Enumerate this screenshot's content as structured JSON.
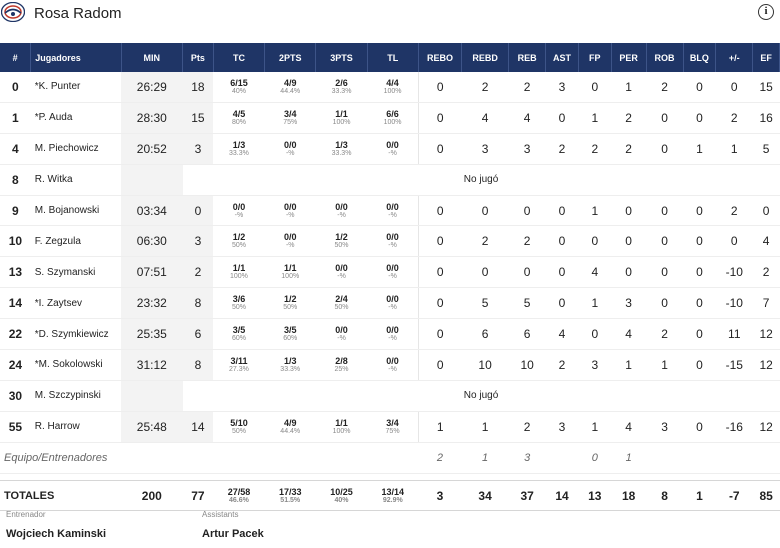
{
  "team": {
    "name": "Rosa Radom"
  },
  "columns": [
    "#",
    "Jugadores",
    "MIN",
    "Pts",
    "TC",
    "2PTS",
    "3PTS",
    "TL",
    "REBO",
    "REBD",
    "REB",
    "AST",
    "FP",
    "PER",
    "ROB",
    "BLQ",
    "+/-",
    "EF"
  ],
  "players": [
    {
      "num": "0",
      "name": "*K. Punter",
      "min": "26:29",
      "pts": "18",
      "tc": "6/15",
      "tc_pct": "40%",
      "p2": "4/9",
      "p2_pct": "44.4%",
      "p3": "2/6",
      "p3_pct": "33.3%",
      "tl": "4/4",
      "tl_pct": "100%",
      "rebo": "0",
      "rebd": "2",
      "reb": "2",
      "ast": "3",
      "fp": "0",
      "per": "1",
      "rob": "2",
      "blq": "0",
      "pm": "0",
      "ef": "15"
    },
    {
      "num": "1",
      "name": "*P. Auda",
      "min": "28:30",
      "pts": "15",
      "tc": "4/5",
      "tc_pct": "80%",
      "p2": "3/4",
      "p2_pct": "75%",
      "p3": "1/1",
      "p3_pct": "100%",
      "tl": "6/6",
      "tl_pct": "100%",
      "rebo": "0",
      "rebd": "4",
      "reb": "4",
      "ast": "0",
      "fp": "1",
      "per": "2",
      "rob": "0",
      "blq": "0",
      "pm": "2",
      "ef": "16"
    },
    {
      "num": "4",
      "name": "M. Piechowicz",
      "min": "20:52",
      "pts": "3",
      "tc": "1/3",
      "tc_pct": "33.3%",
      "p2": "0/0",
      "p2_pct": "-%",
      "p3": "1/3",
      "p3_pct": "33.3%",
      "tl": "0/0",
      "tl_pct": "-%",
      "rebo": "0",
      "rebd": "3",
      "reb": "3",
      "ast": "2",
      "fp": "2",
      "per": "2",
      "rob": "0",
      "blq": "1",
      "pm": "1",
      "ef": "5"
    },
    {
      "num": "8",
      "name": "R. Witka",
      "dnp": "No jugó"
    },
    {
      "num": "9",
      "name": "M. Bojanowski",
      "min": "03:34",
      "pts": "0",
      "tc": "0/0",
      "tc_pct": "-%",
      "p2": "0/0",
      "p2_pct": "-%",
      "p3": "0/0",
      "p3_pct": "-%",
      "tl": "0/0",
      "tl_pct": "-%",
      "rebo": "0",
      "rebd": "0",
      "reb": "0",
      "ast": "0",
      "fp": "1",
      "per": "0",
      "rob": "0",
      "blq": "0",
      "pm": "2",
      "ef": "0"
    },
    {
      "num": "10",
      "name": "F. Zegzula",
      "min": "06:30",
      "pts": "3",
      "tc": "1/2",
      "tc_pct": "50%",
      "p2": "0/0",
      "p2_pct": "-%",
      "p3": "1/2",
      "p3_pct": "50%",
      "tl": "0/0",
      "tl_pct": "-%",
      "rebo": "0",
      "rebd": "2",
      "reb": "2",
      "ast": "0",
      "fp": "0",
      "per": "0",
      "rob": "0",
      "blq": "0",
      "pm": "0",
      "ef": "4"
    },
    {
      "num": "13",
      "name": "S. Szymanski",
      "min": "07:51",
      "pts": "2",
      "tc": "1/1",
      "tc_pct": "100%",
      "p2": "1/1",
      "p2_pct": "100%",
      "p3": "0/0",
      "p3_pct": "-%",
      "tl": "0/0",
      "tl_pct": "-%",
      "rebo": "0",
      "rebd": "0",
      "reb": "0",
      "ast": "0",
      "fp": "4",
      "per": "0",
      "rob": "0",
      "blq": "0",
      "pm": "-10",
      "ef": "2"
    },
    {
      "num": "14",
      "name": "*I. Zaytsev",
      "min": "23:32",
      "pts": "8",
      "tc": "3/6",
      "tc_pct": "50%",
      "p2": "1/2",
      "p2_pct": "50%",
      "p3": "2/4",
      "p3_pct": "50%",
      "tl": "0/0",
      "tl_pct": "-%",
      "rebo": "0",
      "rebd": "5",
      "reb": "5",
      "ast": "0",
      "fp": "1",
      "per": "3",
      "rob": "0",
      "blq": "0",
      "pm": "-10",
      "ef": "7"
    },
    {
      "num": "22",
      "name": "*D. Szymkiewicz",
      "min": "25:35",
      "pts": "6",
      "tc": "3/5",
      "tc_pct": "60%",
      "p2": "3/5",
      "p2_pct": "60%",
      "p3": "0/0",
      "p3_pct": "-%",
      "tl": "0/0",
      "tl_pct": "-%",
      "rebo": "0",
      "rebd": "6",
      "reb": "6",
      "ast": "4",
      "fp": "0",
      "per": "4",
      "rob": "2",
      "blq": "0",
      "pm": "11",
      "ef": "12"
    },
    {
      "num": "24",
      "name": "*M. Sokolowski",
      "min": "31:12",
      "pts": "8",
      "tc": "3/11",
      "tc_pct": "27.3%",
      "p2": "1/3",
      "p2_pct": "33.3%",
      "p3": "2/8",
      "p3_pct": "25%",
      "tl": "0/0",
      "tl_pct": "-%",
      "rebo": "0",
      "rebd": "10",
      "reb": "10",
      "ast": "2",
      "fp": "3",
      "per": "1",
      "rob": "1",
      "blq": "0",
      "pm": "-15",
      "ef": "12"
    },
    {
      "num": "30",
      "name": "M. Szczypinski",
      "dnp": "No jugó"
    },
    {
      "num": "55",
      "name": "R. Harrow",
      "min": "25:48",
      "pts": "14",
      "tc": "5/10",
      "tc_pct": "50%",
      "p2": "4/9",
      "p2_pct": "44.4%",
      "p3": "1/1",
      "p3_pct": "100%",
      "tl": "3/4",
      "tl_pct": "75%",
      "rebo": "1",
      "rebd": "1",
      "reb": "2",
      "ast": "3",
      "fp": "1",
      "per": "4",
      "rob": "3",
      "blq": "0",
      "pm": "-16",
      "ef": "12"
    }
  ],
  "team_row": {
    "label": "Equipo/Entrenadores",
    "rebo": "2",
    "rebd": "1",
    "reb": "3",
    "ast": "",
    "fp": "0",
    "per": "1",
    "rob": "",
    "blq": "",
    "pm": "",
    "ef": ""
  },
  "totals": {
    "label": "TOTALES",
    "min": "200",
    "pts": "77",
    "tc": "27/58",
    "tc_pct": "46.6%",
    "p2": "17/33",
    "p2_pct": "51.5%",
    "p3": "10/25",
    "p3_pct": "40%",
    "tl": "13/14",
    "tl_pct": "92.9%",
    "rebo": "3",
    "rebd": "34",
    "reb": "37",
    "ast": "14",
    "fp": "13",
    "per": "18",
    "rob": "8",
    "blq": "1",
    "pm": "-7",
    "ef": "85"
  },
  "staff": {
    "coach_label": "Entrenador",
    "coach": "Wojciech Kaminski",
    "assist_label": "Assistants",
    "assist": "Artur Pacek"
  }
}
